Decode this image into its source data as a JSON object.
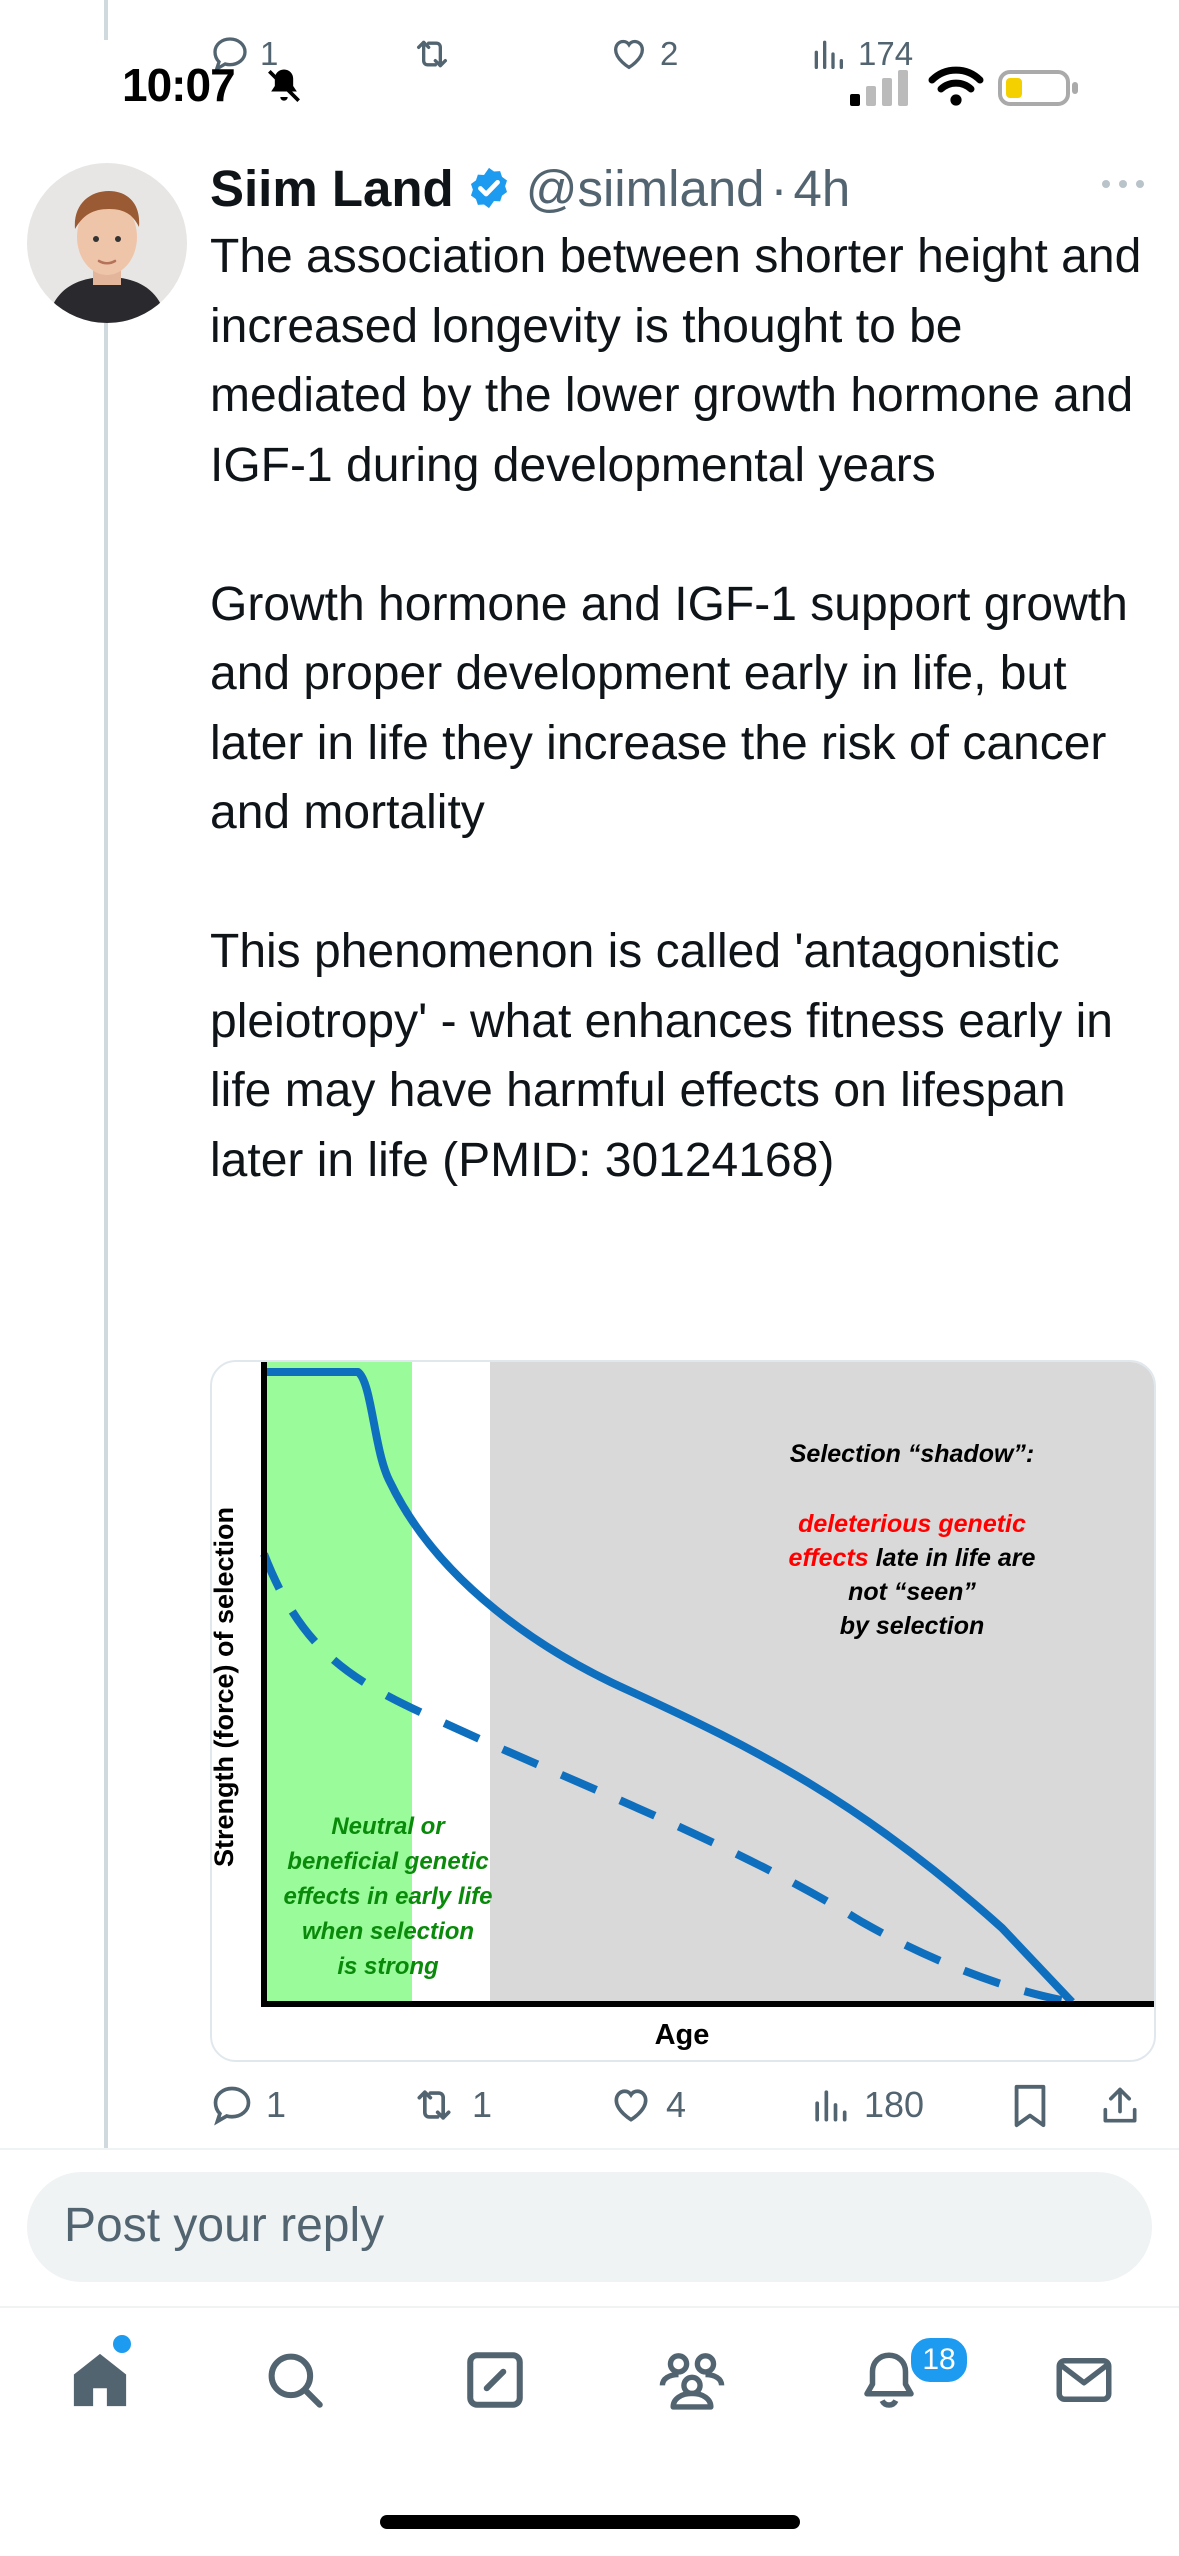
{
  "status_bar": {
    "time": "10:07"
  },
  "previous_post": {
    "reply_count": "1",
    "like_count": "2",
    "view_count": "174"
  },
  "post": {
    "author_name": "Siim Land",
    "author_handle": "@siimland",
    "separator": "·",
    "time_ago": "4h",
    "paragraphs": [
      "The association between shorter height and increased longevity is thought to be mediated by the lower growth hormone and IGF-1 during developmental years",
      "Growth hormone and IGF-1 support growth and proper development early in life, but later in life they increase the risk of cancer and mortality",
      "This phenomenon is called 'antagonistic pleiotropy' - what enhances fitness early in life may have harmful effects on lifespan later in life (PMID: 30124168)"
    ],
    "figure": {
      "y_axis_label": "Strength (force) of selection",
      "x_axis_label": "Age",
      "shadow_title": "Selection “shadow”:",
      "shadow_red_1": "deleterious genetic",
      "shadow_red_2": "effects",
      "shadow_rest_1": " late in life are",
      "shadow_rest_2": "not “seen”",
      "shadow_rest_3": "by selection",
      "green_lines": [
        "Neutral or",
        "beneficial genetic",
        "effects in early life",
        "when selection",
        "is strong"
      ],
      "colors": {
        "green_zone": "#99fb99",
        "shadow_zone": "#d9d9d9",
        "curve": "#0f6fbf",
        "red_text": "#ff0000",
        "green_text": "#0a8a0a"
      }
    },
    "actions": {
      "reply_count": "1",
      "repost_count": "1",
      "like_count": "4",
      "view_count": "180"
    }
  },
  "reply_box": {
    "placeholder": "Post your reply"
  },
  "tab_bar": {
    "notification_count": "18"
  },
  "colors": {
    "accent": "#1d9bf0",
    "text": "#0f1419",
    "muted": "#536471"
  },
  "icons": [
    "reply-icon",
    "repost-icon",
    "like-icon",
    "views-icon",
    "bookmark-icon",
    "share-icon",
    "more-icon",
    "verified-icon",
    "home-icon",
    "search-icon",
    "compose-icon",
    "communities-icon",
    "notifications-icon",
    "messages-icon"
  ]
}
